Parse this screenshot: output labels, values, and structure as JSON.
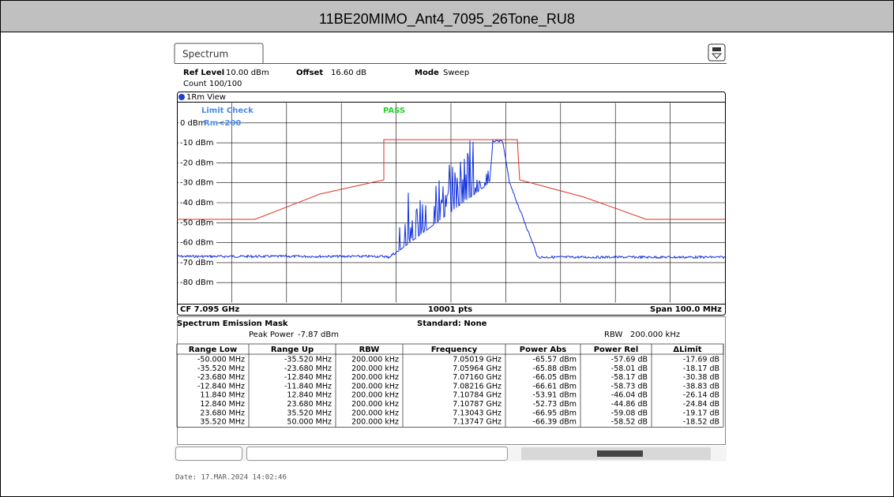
{
  "header": {
    "title": "11BE20MIMO_Ant4_7095_26Tone_RU8"
  },
  "tab": {
    "label": "Spectrum"
  },
  "info": {
    "ref_level_label": "Ref Level",
    "ref_level_value": "10.00 dBm",
    "offset_label": "Offset",
    "offset_value": "16.60 dB",
    "mode_label": "Mode",
    "mode_value": "Sweep",
    "count": "Count 100/100"
  },
  "plot": {
    "view_label": "1Rm View",
    "limit_check": "Limit Check",
    "pass": "PASS",
    "rm": "Rm<200",
    "y_labels": [
      "0 dBm",
      "-10 dBm",
      "-20 dBm",
      "-30 dBm",
      "-40 dBm",
      "-50 dBm",
      "-60 dBm",
      "-70 dBm",
      "-80 dBm"
    ],
    "cf": "CF 7.095 GHz",
    "points": "10001 pts",
    "span": "Span 100.0 MHz"
  },
  "results": {
    "title": "Spectrum Emission Mask",
    "standard": "Standard: None",
    "peak_power_label": "Peak Power",
    "peak_power": "-7.87 dBm",
    "rbw_label": "RBW",
    "rbw": "200.000 kHz",
    "table": {
      "columns": [
        "Range Low",
        "Range Up",
        "RBW",
        "Frequency",
        "Power Abs",
        "Power Rel",
        "ΔLimit"
      ],
      "rows": [
        [
          "-50.000 MHz",
          "-35.520 MHz",
          "200.000 kHz",
          "7.05019 GHz",
          "-65.57 dBm",
          "-57.69 dB",
          "-17.69 dB"
        ],
        [
          "-35.520 MHz",
          "-23.680 MHz",
          "200.000 kHz",
          "7.05964 GHz",
          "-65.88 dBm",
          "-58.01 dB",
          "-18.17 dB"
        ],
        [
          "-23.680 MHz",
          "-12.840 MHz",
          "200.000 kHz",
          "7.07160 GHz",
          "-66.05 dBm",
          "-58.17 dB",
          "-30.38 dB"
        ],
        [
          "-12.840 MHz",
          "-11.840 MHz",
          "200.000 kHz",
          "7.08216 GHz",
          "-66.61 dBm",
          "-58.73 dB",
          "-38.83 dB"
        ],
        [
          "11.840 MHz",
          "12.840 MHz",
          "200.000 kHz",
          "7.10784 GHz",
          "-53.91 dBm",
          "-46.04 dB",
          "-26.14 dB"
        ],
        [
          "12.840 MHz",
          "23.680 MHz",
          "200.000 kHz",
          "7.10787 GHz",
          "-52.73 dBm",
          "-44.86 dB",
          "-24.84 dB"
        ],
        [
          "23.680 MHz",
          "35.520 MHz",
          "200.000 kHz",
          "7.13043 GHz",
          "-66.95 dBm",
          "-59.08 dB",
          "-19.17 dB"
        ],
        [
          "35.520 MHz",
          "50.000 MHz",
          "200.000 kHz",
          "7.13747 GHz",
          "-66.39 dBm",
          "-58.52 dB",
          "-18.52 dB"
        ]
      ]
    }
  },
  "footer": {
    "date": "Date: 17.MAR.2024  14:02:46"
  }
}
